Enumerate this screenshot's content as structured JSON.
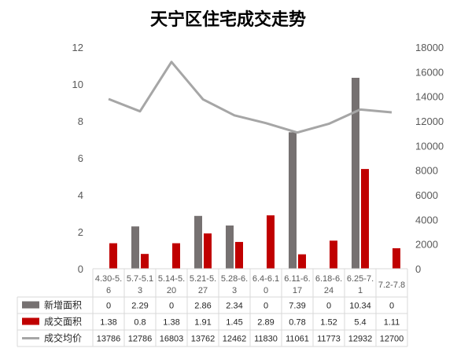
{
  "chart_data": {
    "type": "bar",
    "title": "天宁区住宅成交走势",
    "categories": [
      "4.30-5.6",
      "5.7-5.13",
      "5.14-5.20",
      "5.21-5.27",
      "5.28-6.3",
      "6.4-6.10",
      "6.11-6.17",
      "6.18-6.24",
      "6.25-7.1",
      "7.2-7.8"
    ],
    "category_display": [
      [
        "4.30-5.",
        "6"
      ],
      [
        "5.7-5.1",
        "3"
      ],
      [
        "5.14-5.",
        "20"
      ],
      [
        "5.21-5.",
        "27"
      ],
      [
        "5.28-6.",
        "3"
      ],
      [
        "6.4-6.1",
        "0"
      ],
      [
        "6.11-6.",
        "17"
      ],
      [
        "6.18-6.",
        "24"
      ],
      [
        "6.25-7.",
        "1"
      ],
      [
        "7.2-7.8",
        ""
      ]
    ],
    "series": [
      {
        "name": "新增面积",
        "type": "bar",
        "axis": "left",
        "color": "#767171",
        "values": [
          0,
          2.29,
          0,
          2.86,
          2.34,
          0,
          7.39,
          0,
          10.34,
          0
        ]
      },
      {
        "name": "成交面积",
        "type": "bar",
        "axis": "left",
        "color": "#C00000",
        "values": [
          1.38,
          0.8,
          1.38,
          1.91,
          1.45,
          2.89,
          0.78,
          1.52,
          5.4,
          1.11
        ]
      },
      {
        "name": "成交均价",
        "type": "line",
        "axis": "right",
        "color": "#A6A6A6",
        "values": [
          13786,
          12786,
          16803,
          13762,
          12462,
          11830,
          11061,
          11773,
          12932,
          12700
        ]
      }
    ],
    "y_left": {
      "min": 0,
      "max": 12,
      "step": 2
    },
    "y_right": {
      "min": 0,
      "max": 18000,
      "step": 2000
    },
    "legend": "data-table-bottom",
    "grid": false
  }
}
